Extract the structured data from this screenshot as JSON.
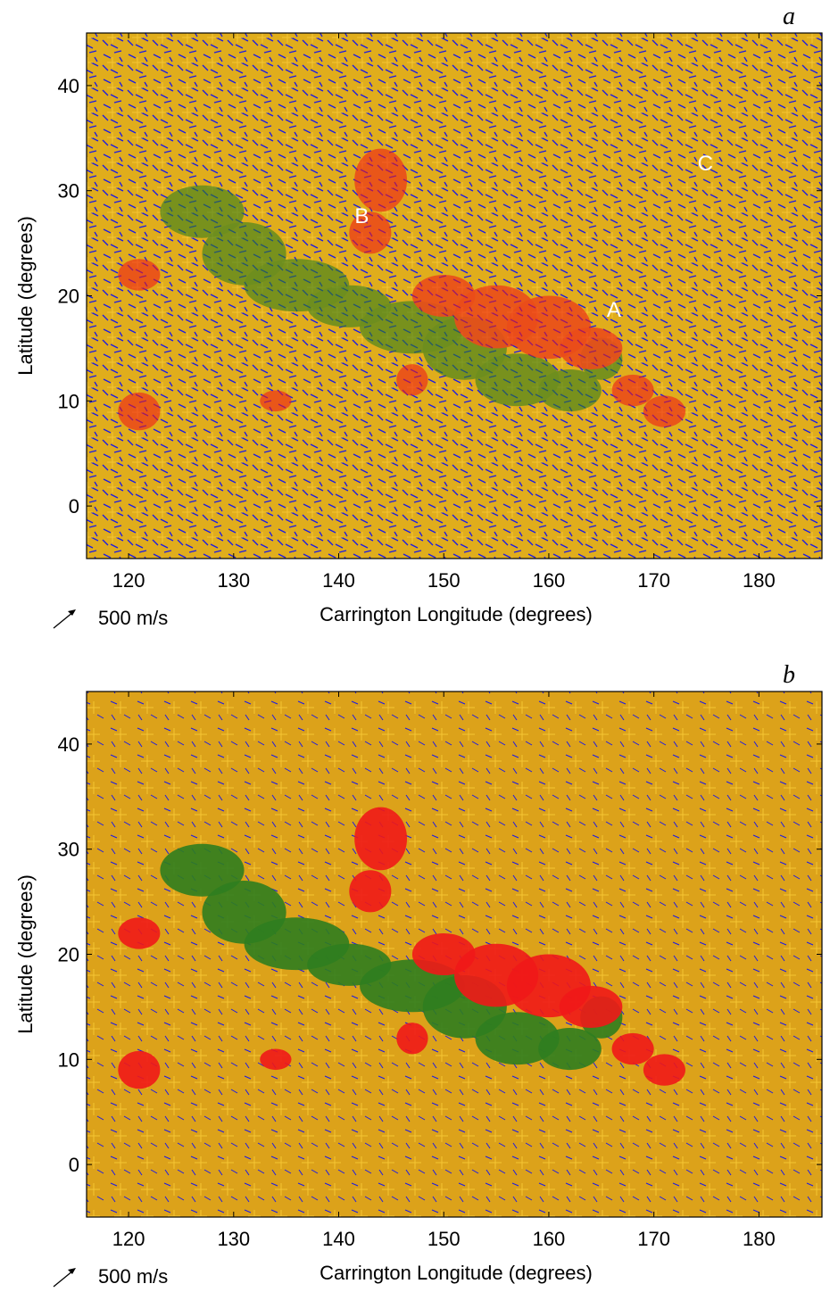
{
  "chart_data": [
    {
      "type": "vector-field",
      "panel_label": "a",
      "x_label": "Carrington Longitude (degrees)",
      "y_label": "Latitude (degrees)",
      "xlim": [
        116,
        186
      ],
      "ylim": [
        -5,
        45
      ],
      "xticks": [
        120,
        130,
        140,
        150,
        160,
        170,
        180
      ],
      "yticks": [
        0,
        10,
        20,
        30,
        40
      ],
      "scale_label": "500 m/s",
      "annotations": [
        {
          "text": "A",
          "x": 166.2,
          "y": 18.7
        },
        {
          "text": "B",
          "x": 142.2,
          "y": 27.6
        },
        {
          "text": "C",
          "x": 174.9,
          "y": 32.6
        }
      ]
    },
    {
      "type": "vector-field",
      "panel_label": "b",
      "x_label": "Carrington Longitude (degrees)",
      "y_label": "Latitude (degrees)",
      "xlim": [
        116,
        186
      ],
      "ylim": [
        -5,
        45
      ],
      "xticks": [
        120,
        130,
        140,
        150,
        160,
        170,
        180
      ],
      "yticks": [
        0,
        10,
        20,
        30,
        40
      ],
      "scale_label": "500 m/s"
    }
  ]
}
